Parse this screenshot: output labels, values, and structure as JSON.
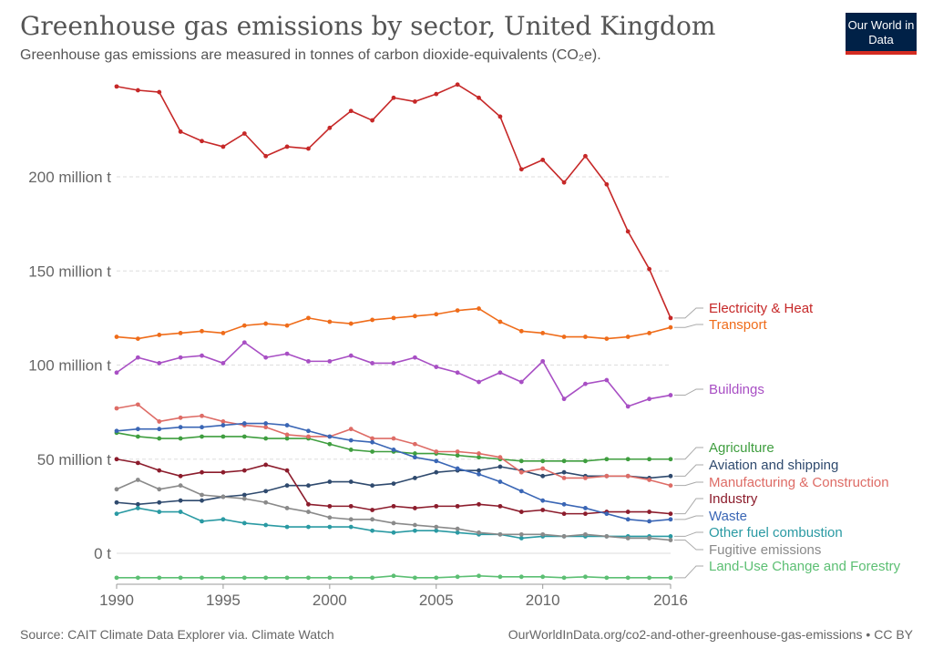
{
  "header": {
    "title": "Greenhouse gas emissions by sector, United Kingdom",
    "subtitle": "Greenhouse gas emissions are measured in tonnes of carbon dioxide-equivalents (CO₂e).",
    "logo": "Our World in Data"
  },
  "footer": {
    "source": "Source: CAIT Climate Data Explorer via. Climate Watch",
    "site": "OurWorldInData.org/co2-and-other-greenhouse-gas-emissions • CC BY"
  },
  "colors": {
    "brand": "#002147",
    "accent": "#d42b21"
  },
  "chart_data": {
    "type": "line",
    "x": [
      1990,
      1991,
      1992,
      1993,
      1994,
      1995,
      1996,
      1997,
      1998,
      1999,
      2000,
      2001,
      2002,
      2003,
      2004,
      2005,
      2006,
      2007,
      2008,
      2009,
      2010,
      2011,
      2012,
      2013,
      2014,
      2015,
      2016
    ],
    "xticks": [
      1990,
      1995,
      2000,
      2005,
      2010,
      2016
    ],
    "xlim": [
      1990,
      2016
    ],
    "ylim": [
      -15,
      255
    ],
    "yticks": [
      {
        "value": 0,
        "label": "0 t"
      },
      {
        "value": 50,
        "label": "50 million t"
      },
      {
        "value": 100,
        "label": "100 million t"
      },
      {
        "value": 150,
        "label": "150 million t"
      },
      {
        "value": 200,
        "label": "200 million t"
      }
    ],
    "unit": "million t",
    "grid": true,
    "legend": "right",
    "series": [
      {
        "name": "Electricity & Heat",
        "color": "#c62828",
        "values": [
          248,
          246,
          245,
          224,
          219,
          216,
          223,
          211,
          216,
          215,
          226,
          235,
          230,
          242,
          240,
          244,
          249,
          242,
          232,
          204,
          209,
          197,
          211,
          196,
          171,
          151,
          125
        ]
      },
      {
        "name": "Transport",
        "color": "#ef6c1a",
        "values": [
          115,
          114,
          116,
          117,
          118,
          117,
          121,
          122,
          121,
          125,
          123,
          122,
          124,
          125,
          126,
          127,
          129,
          130,
          123,
          118,
          117,
          115,
          115,
          114,
          115,
          117,
          120
        ]
      },
      {
        "name": "Buildings",
        "color": "#a84fc4",
        "values": [
          96,
          104,
          101,
          104,
          105,
          101,
          112,
          104,
          106,
          102,
          102,
          105,
          101,
          101,
          104,
          99,
          96,
          91,
          96,
          91,
          102,
          82,
          90,
          92,
          78,
          82,
          84
        ]
      },
      {
        "name": "Agriculture",
        "color": "#3f9e3f",
        "values": [
          64,
          62,
          61,
          61,
          62,
          62,
          62,
          61,
          61,
          61,
          58,
          55,
          54,
          54,
          53,
          53,
          52,
          51,
          50,
          49,
          49,
          49,
          49,
          50,
          50,
          50,
          50
        ]
      },
      {
        "name": "Aviation and shipping",
        "color": "#2f4a6e",
        "values": [
          27,
          26,
          27,
          28,
          28,
          30,
          31,
          33,
          36,
          36,
          38,
          38,
          36,
          37,
          40,
          43,
          44,
          44,
          46,
          44,
          41,
          43,
          41,
          41,
          41,
          40,
          41
        ]
      },
      {
        "name": "Manufacturing & Construction",
        "color": "#de6c66",
        "values": [
          77,
          79,
          70,
          72,
          73,
          70,
          68,
          67,
          63,
          62,
          62,
          66,
          61,
          61,
          58,
          54,
          54,
          53,
          51,
          43,
          45,
          40,
          40,
          41,
          41,
          39,
          36
        ]
      },
      {
        "name": "Industry",
        "color": "#8c1c2c",
        "values": [
          50,
          48,
          44,
          41,
          43,
          43,
          44,
          47,
          44,
          26,
          25,
          25,
          23,
          25,
          24,
          25,
          25,
          26,
          25,
          22,
          23,
          21,
          21,
          22,
          22,
          22,
          21
        ]
      },
      {
        "name": "Waste",
        "color": "#3a66b5",
        "values": [
          65,
          66,
          66,
          67,
          67,
          68,
          69,
          69,
          68,
          65,
          62,
          60,
          59,
          55,
          51,
          49,
          45,
          42,
          38,
          33,
          28,
          26,
          24,
          21,
          18,
          17,
          18
        ]
      },
      {
        "name": "Other fuel combustion",
        "color": "#2a9aa3",
        "values": [
          21,
          24,
          22,
          22,
          17,
          18,
          16,
          15,
          14,
          14,
          14,
          14,
          12,
          11,
          12,
          12,
          11,
          10,
          10,
          8,
          9,
          9,
          9,
          9,
          9,
          9,
          9
        ]
      },
      {
        "name": "Fugitive emissions",
        "color": "#8a8a8a",
        "values": [
          34,
          39,
          34,
          36,
          31,
          30,
          29,
          27,
          24,
          22,
          19,
          18,
          18,
          16,
          15,
          14,
          13,
          11,
          10,
          10,
          10,
          9,
          10,
          9,
          8,
          8,
          7
        ]
      },
      {
        "name": "Land-Use Change and Forestry",
        "color": "#5cbf73",
        "values": [
          -13,
          -13,
          -13,
          -13,
          -13,
          -13,
          -13,
          -13,
          -13,
          -13,
          -13,
          -13,
          -13,
          -12,
          -13,
          -13,
          -12.5,
          -12,
          -12.5,
          -12.5,
          -12.5,
          -13,
          -12.5,
          -13,
          -13,
          -13,
          -13
        ]
      }
    ]
  }
}
